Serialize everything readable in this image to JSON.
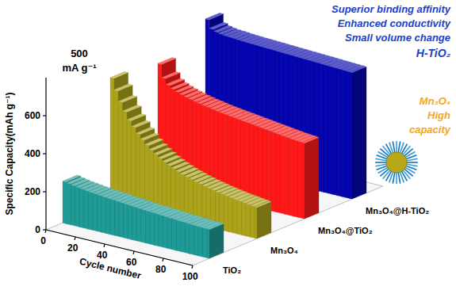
{
  "chart_data": {
    "type": "bar",
    "xlabel": "Cycle number",
    "ylabel": "Specific Capacity(mAh g⁻¹)",
    "x": [
      1,
      4,
      7,
      10,
      13,
      16,
      19,
      22,
      25,
      28,
      31,
      34,
      37,
      40,
      43,
      46,
      49,
      52,
      55,
      58,
      61,
      64,
      67,
      70,
      73,
      76,
      79,
      82,
      85,
      88,
      91,
      94,
      97,
      100
    ],
    "xlim": [
      0,
      100
    ],
    "xticks": [
      0,
      20,
      40,
      60,
      80,
      100
    ],
    "ylim": [
      0,
      800
    ],
    "yticks": [
      0,
      200,
      400,
      600
    ],
    "grid": false,
    "series": [
      {
        "name": "TiO₂",
        "color": "#1f9a96",
        "values": [
          220,
          214,
          210,
          206,
          203,
          200,
          197,
          195,
          192,
          190,
          188,
          186,
          184,
          182,
          180,
          178,
          176,
          174,
          172,
          171,
          169,
          168,
          166,
          165,
          163,
          162,
          160,
          159,
          158,
          156,
          155,
          154,
          153,
          152
        ]
      },
      {
        "name": "Mn₃O₄",
        "color": "#aca21c",
        "values": [
          660,
          600,
          545,
          500,
          460,
          430,
          400,
          375,
          352,
          332,
          315,
          300,
          286,
          274,
          263,
          253,
          244,
          236,
          229,
          222,
          216,
          210,
          205,
          200,
          195,
          191,
          187,
          183,
          179,
          176,
          173,
          170,
          167,
          164
        ]
      },
      {
        "name": "Mn₃O₄@TiO₂",
        "color": "#ff1a1a",
        "values": [
          630,
          560,
          530,
          515,
          505,
          497,
          490,
          484,
          478,
          473,
          468,
          464,
          460,
          456,
          452,
          449,
          446,
          443,
          440,
          437,
          434,
          431,
          428,
          425,
          422,
          419,
          416,
          413,
          410,
          407,
          404,
          402,
          400,
          398
        ]
      },
      {
        "name": "Mn₃O₄@H-TiO₂",
        "color": "#0606b0",
        "values": [
          760,
          715,
          705,
          700,
          697,
          695,
          694,
          692,
          690,
          689,
          688,
          687,
          686,
          685,
          684,
          683,
          682,
          681,
          680,
          679,
          678,
          677,
          676,
          675,
          674,
          673,
          672,
          671,
          670,
          669,
          668,
          667,
          666,
          665
        ]
      }
    ],
    "annotations": [
      "500",
      "mA g⁻¹",
      "Superior binding affinity",
      "Enhanced conductivity",
      "Small volume change",
      "H-TiO₂",
      "Mn₃O₄",
      "High",
      "capacity"
    ]
  }
}
